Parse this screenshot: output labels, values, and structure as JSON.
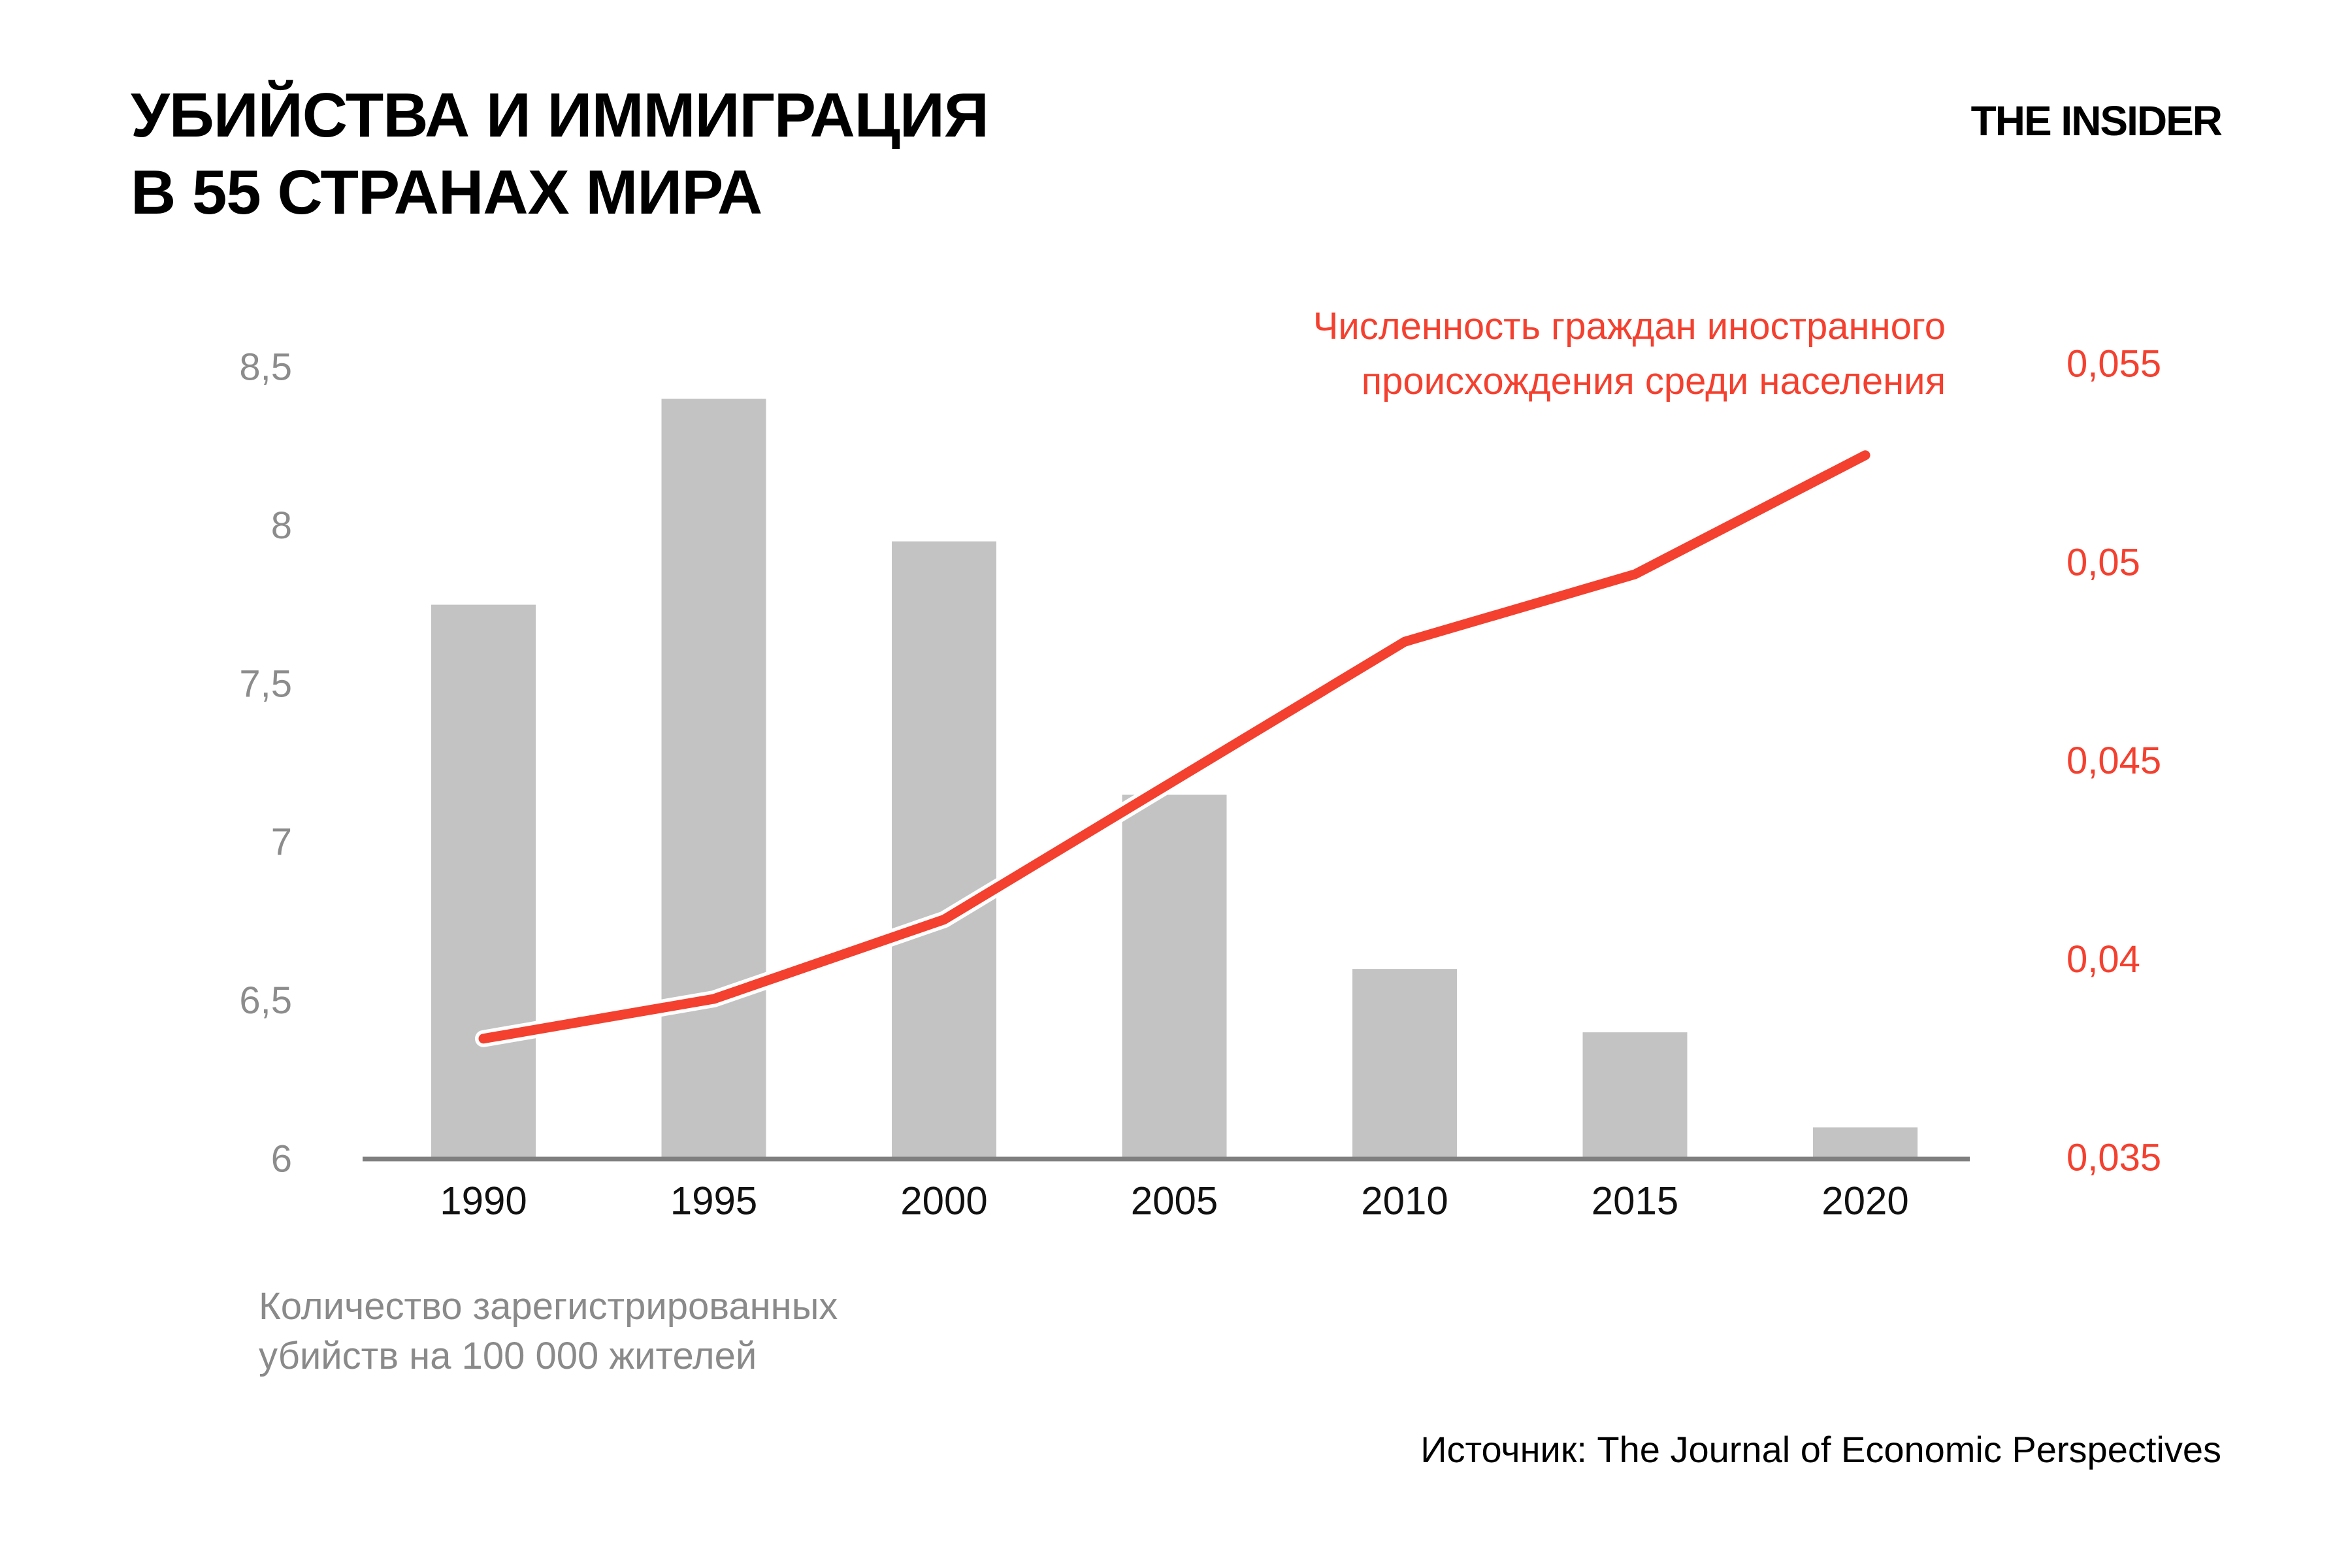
{
  "header": {
    "title_line1": "УБИЙСТВА И ИММИГРАЦИЯ",
    "title_line2": "В 55 СТРАНАХ МИРА",
    "logo": "THE INSIDER"
  },
  "annotation": {
    "line1": "Численность граждан иностранного",
    "line2": "происхождения среди населения"
  },
  "caption": {
    "line1": "Количество зарегистрированных",
    "line2": "убийств на 100 000 жителей"
  },
  "source": "Источник: The Journal of Economic Perspectives",
  "colors": {
    "line_red": "#F4402F",
    "bar_gray": "#C3C3C3",
    "axis_label_gray": "#8C8C8C",
    "axis_line_gray": "#7F7F7F",
    "year_label_black": "#111111"
  },
  "chart_data": {
    "type": "bar+line combo",
    "categories": [
      "1990",
      "1995",
      "2000",
      "2005",
      "2010",
      "2015",
      "2020"
    ],
    "series": [
      {
        "name": "Количество зарегистрированных убийств на 100 000 жителей",
        "type": "bar",
        "axis": "left",
        "values": [
          7.75,
          8.4,
          7.95,
          7.15,
          6.6,
          6.4,
          6.1
        ]
      },
      {
        "name": "Численность граждан иностранного происхождения среди населения",
        "type": "line",
        "axis": "right",
        "values": [
          0.038,
          0.039,
          0.041,
          0.0445,
          0.048,
          0.0497,
          0.0527
        ]
      }
    ],
    "left_axis": {
      "ticks": [
        "8,5",
        "8",
        "7,5",
        "7",
        "6,5",
        "6"
      ],
      "tick_values": [
        8.5,
        8,
        7.5,
        7,
        6.5,
        6
      ],
      "min": 6,
      "max": 8.5
    },
    "right_axis": {
      "ticks": [
        "0,055",
        "0,05",
        "0,045",
        "0,04",
        "0,035"
      ],
      "tick_values": [
        0.055,
        0.05,
        0.045,
        0.04,
        0.035
      ],
      "min": 0.035,
      "max": 0.055
    },
    "grid": false,
    "legend_position": "top-right annotation (red text) for line; bottom-left caption (gray text) for bars"
  }
}
